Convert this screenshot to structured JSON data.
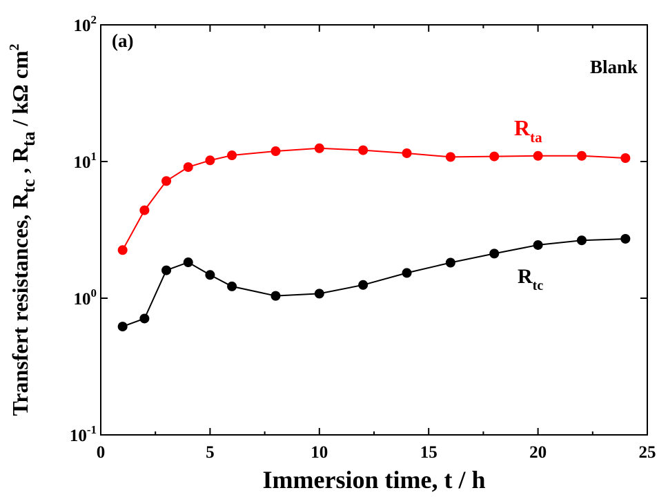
{
  "chart_data": {
    "type": "line",
    "panel_label": "(a)",
    "condition_label": "Blank",
    "xlabel": "Immersion time, t / h",
    "ylabel": {
      "prefix": "Transfert resistances, R",
      "sub1": "tc",
      "mid": " , R",
      "sub2": "ta",
      "suffix": " / kΩ cm",
      "sup": "2"
    },
    "xlim": [
      0,
      25
    ],
    "ylim": [
      0.1,
      100
    ],
    "yscale": "log",
    "x_ticks": [
      0,
      5,
      10,
      15,
      20,
      25
    ],
    "x_tick_labels": [
      "0",
      "5",
      "10",
      "15",
      "20",
      "25"
    ],
    "y_ticks": [
      {
        "value": 0.1,
        "base": "10",
        "exp": "-1"
      },
      {
        "value": 1,
        "base": "10",
        "exp": "0"
      },
      {
        "value": 10,
        "base": "10",
        "exp": "1"
      },
      {
        "value": 100,
        "base": "10",
        "exp": "2"
      }
    ],
    "series": [
      {
        "name_main": "R",
        "name_sub": "ta",
        "color": "#ff0000",
        "x": [
          1,
          2,
          3,
          4,
          5,
          6,
          8,
          10,
          12,
          14,
          16,
          18,
          20,
          22,
          24
        ],
        "y": [
          2.25,
          4.4,
          7.2,
          9.1,
          10.2,
          11.1,
          11.9,
          12.5,
          12.1,
          11.5,
          10.8,
          10.9,
          11.0,
          11.0,
          10.6
        ]
      },
      {
        "name_main": "R",
        "name_sub": "tc",
        "color": "#000000",
        "x": [
          1,
          2,
          3,
          4,
          5,
          6,
          8,
          10,
          12,
          14,
          16,
          18,
          20,
          22,
          24
        ],
        "y": [
          0.62,
          0.71,
          1.6,
          1.83,
          1.48,
          1.22,
          1.04,
          1.08,
          1.25,
          1.53,
          1.82,
          2.12,
          2.45,
          2.65,
          2.72
        ]
      }
    ]
  }
}
